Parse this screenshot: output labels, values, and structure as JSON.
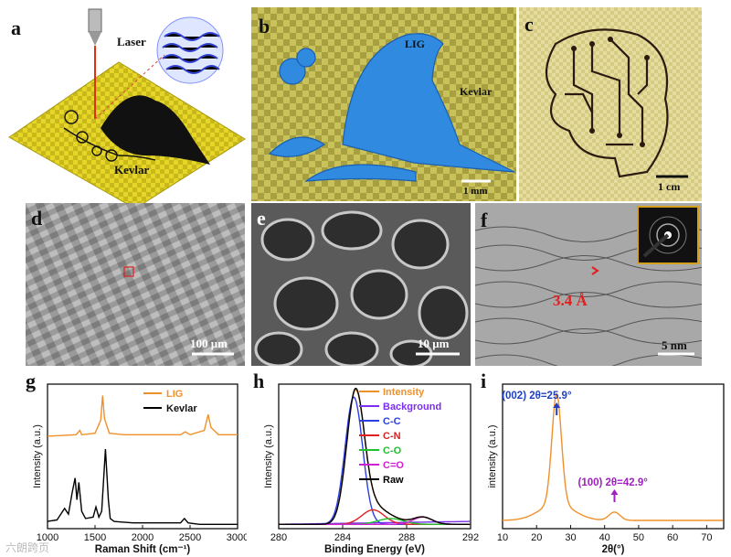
{
  "panels": {
    "a": {
      "label": "a",
      "laser": "Laser",
      "kevlar": "Kevlar"
    },
    "b": {
      "label": "b",
      "lig": "LIG",
      "kevlar": "Kevlar",
      "scale": "1 mm"
    },
    "c": {
      "label": "c",
      "scale": "1 cm"
    },
    "d": {
      "label": "d",
      "scale": "100 μm"
    },
    "e": {
      "label": "e",
      "scale": "10 μm"
    },
    "f": {
      "label": "f",
      "spacing": "3.4 Å",
      "scale": "5 nm"
    },
    "g": {
      "label": "g"
    },
    "h": {
      "label": "h"
    },
    "i": {
      "label": "i"
    }
  },
  "colors": {
    "lig": "#f0902a",
    "kevlar_line": "#000000",
    "blue_pattern": "#2f8ae0",
    "kevlar_fabric": "#e6d629"
  },
  "watermark": "六朗跨页",
  "chart_data": [
    {
      "type": "line",
      "panel": "g",
      "title": "",
      "xlabel": "Raman Shift (cm⁻¹)",
      "ylabel": "Intensity (a.u.)",
      "xlim": [
        1000,
        3000
      ],
      "xticks": [
        "1000",
        "1500",
        "2000",
        "2500",
        "3000"
      ],
      "legend": [
        "LIG",
        "Kevlar"
      ],
      "series": [
        {
          "name": "LIG",
          "color": "#f0902a",
          "x": [
            1000,
            1300,
            1340,
            1360,
            1500,
            1560,
            1580,
            1600,
            1650,
            1800,
            2400,
            2450,
            2500,
            2650,
            2690,
            2720,
            2800,
            3000
          ],
          "y": [
            0.64,
            0.65,
            0.68,
            0.65,
            0.66,
            0.75,
            0.92,
            0.76,
            0.66,
            0.65,
            0.65,
            0.67,
            0.65,
            0.68,
            0.79,
            0.7,
            0.65,
            0.65
          ]
        },
        {
          "name": "Kevlar",
          "color": "#000000",
          "x": [
            1000,
            1100,
            1180,
            1220,
            1260,
            1290,
            1310,
            1330,
            1360,
            1400,
            1480,
            1510,
            1540,
            1570,
            1610,
            1640,
            1660,
            1700,
            1900,
            2400,
            2440,
            2480,
            2600,
            3000
          ],
          "y": [
            0.05,
            0.06,
            0.14,
            0.1,
            0.25,
            0.35,
            0.2,
            0.32,
            0.12,
            0.07,
            0.08,
            0.15,
            0.08,
            0.12,
            0.55,
            0.2,
            0.07,
            0.05,
            0.04,
            0.04,
            0.07,
            0.04,
            0.03,
            0.03
          ]
        }
      ]
    },
    {
      "type": "line",
      "panel": "h",
      "title": "",
      "xlabel": "Binding Energy (eV)",
      "ylabel": "Intensity (a.u.)",
      "xlim": [
        280,
        292
      ],
      "xticks": [
        "280",
        "284",
        "288",
        "292"
      ],
      "legend": [
        "Intensity",
        "Background",
        "C-C",
        "C-N",
        "C-O",
        "C=O",
        "Raw"
      ],
      "series": [
        {
          "name": "Intensity",
          "color": "#f0902a",
          "peaks": [
            [
              284.8,
              0.9,
              0.55
            ],
            [
              285.9,
              0.1,
              0.7
            ],
            [
              287.0,
              0.04,
              0.8
            ],
            [
              289.0,
              0.05,
              0.6
            ]
          ]
        },
        {
          "name": "Background",
          "color": "#7b2ff0",
          "linear": [
            0.03,
            0.05
          ]
        },
        {
          "name": "C-C",
          "color": "#2b3fe0",
          "peaks": [
            [
              284.7,
              0.88,
              0.55
            ]
          ]
        },
        {
          "name": "C-N",
          "color": "#e02020",
          "peaks": [
            [
              285.9,
              0.1,
              0.7
            ]
          ]
        },
        {
          "name": "C-O",
          "color": "#20c030",
          "peaks": [
            [
              287.0,
              0.04,
              0.8
            ]
          ]
        },
        {
          "name": "C=O",
          "color": "#d020d0",
          "peaks": [
            [
              289.0,
              0.05,
              0.6
            ]
          ]
        },
        {
          "name": "Raw",
          "color": "#000000",
          "peaks": [
            [
              284.8,
              0.91,
              0.55
            ],
            [
              285.9,
              0.1,
              0.7
            ],
            [
              287.0,
              0.04,
              0.8
            ],
            [
              289.0,
              0.05,
              0.6
            ]
          ]
        }
      ]
    },
    {
      "type": "line",
      "panel": "i",
      "title": "",
      "xlabel": "2θ(°)",
      "ylabel": "intensity (a.u.)",
      "xlim": [
        10,
        75
      ],
      "xticks": [
        "10",
        "20",
        "30",
        "40",
        "50",
        "60",
        "70"
      ],
      "annotations": [
        {
          "label": "(002)",
          "value": "2θ=25.9°",
          "x": 25.9
        },
        {
          "label": "(100)",
          "value": "2θ=42.9°",
          "x": 42.9
        }
      ],
      "series": [
        {
          "name": "LIG",
          "color": "#f0902a",
          "peaks": [
            [
              25.9,
              0.8,
              1.4
            ],
            [
              25.9,
              0.12,
              5.0
            ],
            [
              42.9,
              0.06,
              1.6
            ]
          ],
          "baseline": 0.06
        }
      ]
    }
  ]
}
